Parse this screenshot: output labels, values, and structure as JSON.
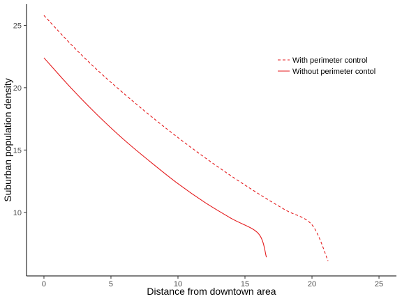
{
  "chart_data": {
    "type": "line",
    "title": "",
    "xlabel": "Distance from downtown area",
    "ylabel": "Suburban population density",
    "xlim": [
      -1.3,
      26.3
    ],
    "ylim": [
      4.9,
      26.7
    ],
    "x_ticks": [
      "0",
      "5",
      "10",
      "15",
      "20",
      "25"
    ],
    "y_ticks": [
      "10",
      "15",
      "20",
      "25"
    ],
    "grid": false,
    "legend_position": "top-right",
    "series": [
      {
        "name": "With perimeter control",
        "line_style": "dashed",
        "color": "#e41a1c",
        "x": [
          0,
          2,
          4,
          6,
          8,
          10,
          12,
          14,
          16,
          18,
          20,
          21.2
        ],
        "y": [
          25.8,
          23.5,
          21.4,
          19.5,
          17.7,
          16.0,
          14.4,
          12.9,
          11.5,
          10.2,
          9.0,
          6.1
        ]
      },
      {
        "name": "Without perimeter contol",
        "line_style": "solid",
        "color": "#e41a1c",
        "x": [
          0,
          2,
          4,
          6,
          8,
          10,
          12,
          14,
          16,
          16.6
        ],
        "y": [
          22.4,
          20.0,
          17.8,
          15.8,
          14.0,
          12.3,
          10.8,
          9.5,
          8.3,
          6.4
        ]
      }
    ]
  }
}
